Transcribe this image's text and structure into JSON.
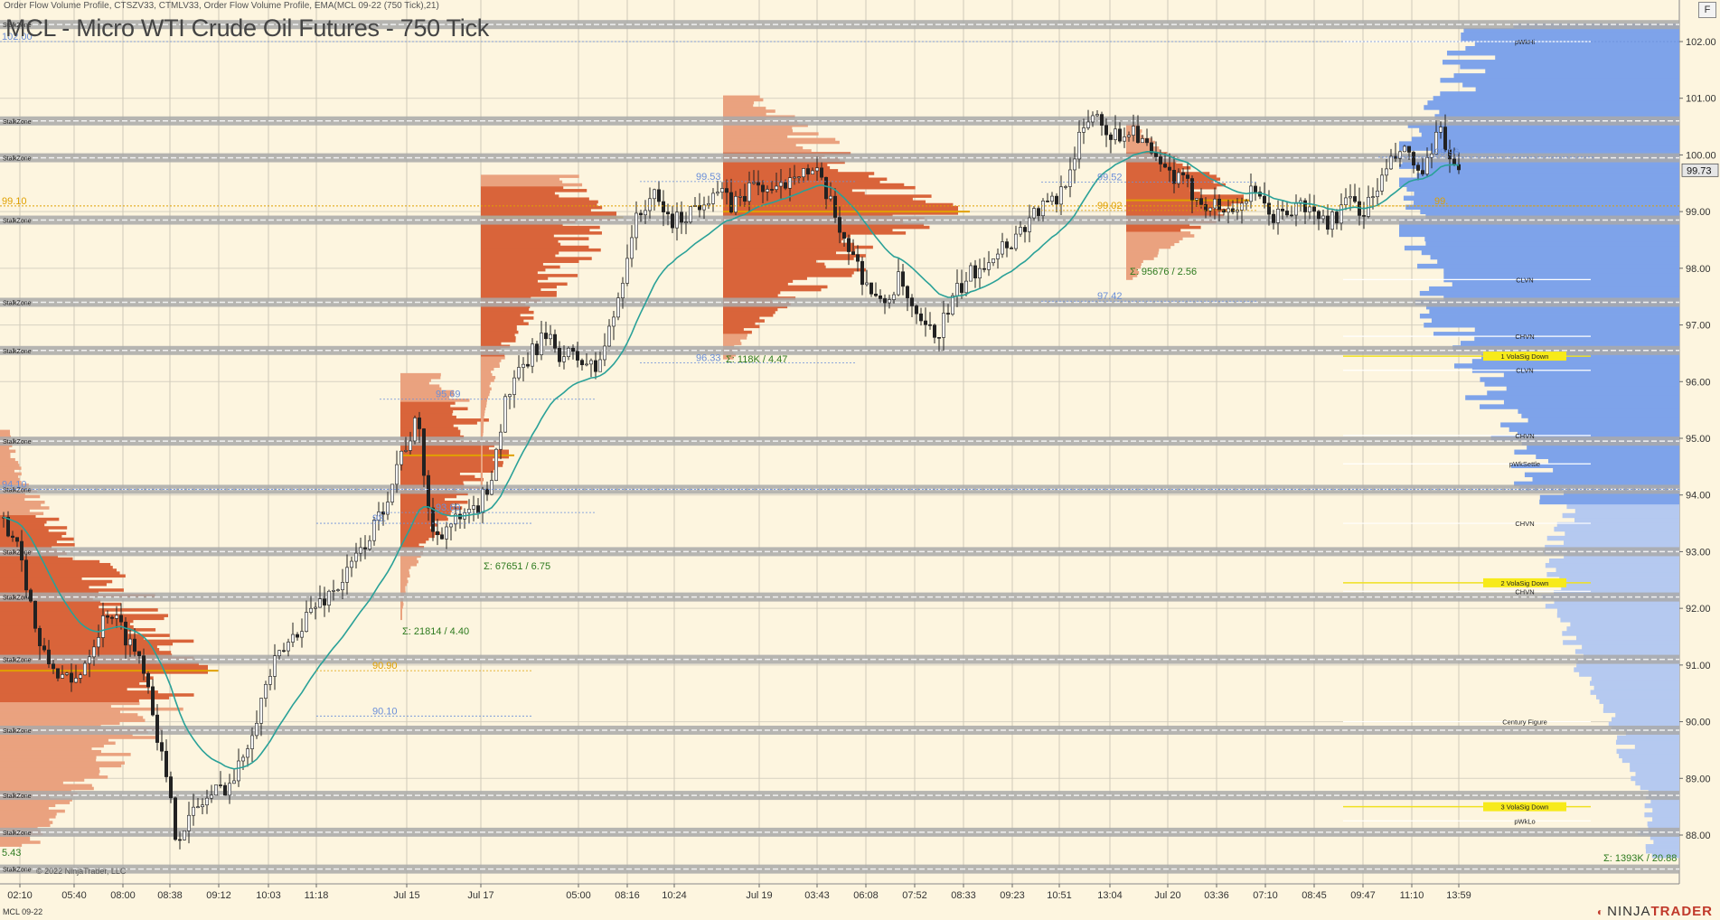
{
  "header": {
    "indicators": "Order Flow Volume Profile, CTSZV33, CTMLV33, Order Flow Volume Profile, EMA(MCL 09-22 (750 Tick),21)",
    "title": "MCL - Micro WTI Crude Oil Futures - 750 Tick",
    "corner_button": "F"
  },
  "footer": {
    "instrument": "MCL 09-22",
    "brand_prefix": "NINJA",
    "brand_suffix": "TRADER"
  },
  "colors": {
    "background": "#fdf5df",
    "profile_dark": "#d9643a",
    "profile_light": "#eaa27f",
    "ema": "#2aa198",
    "candle_up": "#f3f3f3",
    "candle_down": "#222222",
    "volume_profile_blue": "#7ea3ea",
    "volume_profile_blue_light": "#b5c9f0",
    "stalk_zone": "#a9a9a9",
    "poc": "#e0a000",
    "value_line": "#6b8fd9",
    "sum_label": "#2d7a1e",
    "current_price": "#e6e6e6"
  },
  "chart_data": {
    "type": "candlestick",
    "title": "MCL - Micro WTI Crude Oil Futures - 750 Tick",
    "y_range": [
      87.5,
      102.6
    ],
    "y_ticks": [
      "102.00",
      "101.00",
      "100.00",
      "99.00",
      "98.00",
      "97.00",
      "96.00",
      "95.00",
      "94.00",
      "93.00",
      "92.00",
      "91.00",
      "90.00",
      "89.00",
      "88.00"
    ],
    "x_ticks": [
      "02:10",
      "05:40",
      "08:00",
      "08:38",
      "09:12",
      "10:03",
      "11:18",
      "Jul 15",
      "Jul 17",
      "05:00",
      "08:16",
      "10:24",
      "Jul 19",
      "03:43",
      "06:08",
      "07:52",
      "08:33",
      "09:23",
      "10:51",
      "13:04",
      "Jul 20",
      "03:36",
      "07:10",
      "08:45",
      "09:47",
      "11:10",
      "13:59"
    ],
    "current_price": "99.73",
    "stalk_zones": {
      "label": "StalkZone",
      "prices": [
        102.3,
        100.6,
        99.95,
        98.85,
        97.4,
        96.55,
        94.95,
        94.1,
        93.0,
        92.2,
        91.1,
        89.85,
        88.7,
        88.05,
        87.4
      ]
    },
    "ema_label": "EMA(MCL 09-22 (750 Tick),21)",
    "price_labels": [
      {
        "text": "102.00",
        "price": 102.0,
        "color": "value"
      },
      {
        "text": "99.10",
        "price": 99.1,
        "color": "poc"
      },
      {
        "text": "94.10",
        "price": 94.1,
        "color": "value"
      },
      {
        "text": "5.43",
        "price": 87.6,
        "color": "sum"
      },
      {
        "text": "95.69",
        "price": 95.69,
        "color": "value"
      },
      {
        "text": "93.69",
        "price": 93.69,
        "color": "value"
      },
      {
        "text": "93.",
        "price": 93.5,
        "color": "value"
      },
      {
        "text": "90.90",
        "price": 90.9,
        "color": "poc"
      },
      {
        "text": "90.10",
        "price": 90.1,
        "color": "value"
      },
      {
        "text": "99.53",
        "price": 99.53,
        "color": "value"
      },
      {
        "text": "99.52",
        "price": 99.52,
        "color": "value"
      },
      {
        "text": "99.02",
        "price": 99.02,
        "color": "poc"
      },
      {
        "text": "97.42",
        "price": 97.42,
        "color": "value"
      },
      {
        "text": "96.33",
        "price": 96.33,
        "color": "value"
      },
      {
        "text": "99.96",
        "price": 99.96,
        "color": "value"
      },
      {
        "text": "99.",
        "price": 99.1,
        "color": "poc"
      }
    ],
    "sum_labels": [
      {
        "text": "Σ: 21814 / 4.40",
        "price": 91.6
      },
      {
        "text": "Σ: 67651 / 6.75",
        "price": 92.75
      },
      {
        "text": "Σ: 118K / 4.47",
        "price": 96.4
      },
      {
        "text": "Σ: 95676 / 2.56",
        "price": 97.95
      },
      {
        "text": "Σ: 1393K / 20.88",
        "price": 87.6
      }
    ],
    "level_labels": [
      {
        "text": "pWkHi",
        "price": 102.0
      },
      {
        "text": "CLVN",
        "price": 97.8
      },
      {
        "text": "CHVN",
        "price": 96.8
      },
      {
        "text": "1 VolaSig Down",
        "price": 96.45,
        "highlight": true
      },
      {
        "text": "CLVN",
        "price": 96.2
      },
      {
        "text": "CHVN",
        "price": 95.05
      },
      {
        "text": "pWkSettle",
        "price": 94.55
      },
      {
        "text": "CHVN",
        "price": 93.5
      },
      {
        "text": "2 VolaSig Down",
        "price": 92.45,
        "highlight": true
      },
      {
        "text": "CHVN",
        "price": 92.3
      },
      {
        "text": "Century Figure",
        "price": 90.0
      },
      {
        "text": "3 VolaSig Down",
        "price": 88.5,
        "highlight": true
      },
      {
        "text": "pWkLo",
        "price": 88.25
      }
    ],
    "copyright": "© 2022 NinjaTrader, LLC"
  }
}
